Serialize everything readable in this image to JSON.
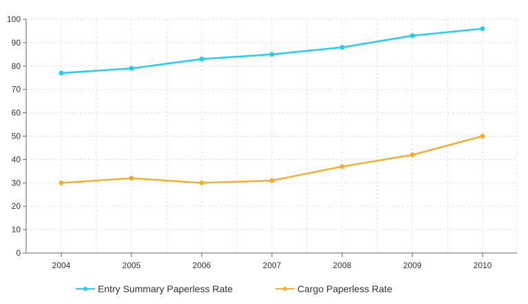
{
  "chart_data": {
    "type": "line",
    "title": "",
    "xlabel": "",
    "ylabel": "",
    "categories": [
      "2004",
      "2005",
      "2006",
      "2007",
      "2008",
      "2009",
      "2010"
    ],
    "ylim": [
      0,
      100
    ],
    "yticks": [
      0,
      10,
      20,
      30,
      40,
      50,
      60,
      70,
      80,
      90,
      100
    ],
    "grid": true,
    "legend_position": "bottom",
    "series": [
      {
        "name": "Entry Summary Paperless Rate",
        "color": "#1ecff2",
        "values": [
          77,
          79,
          83,
          85,
          88,
          93,
          96
        ]
      },
      {
        "name": "Cargo Paperless Rate",
        "color": "#f6ae2d",
        "values": [
          30,
          32,
          30,
          31,
          37,
          42,
          50
        ]
      }
    ]
  }
}
